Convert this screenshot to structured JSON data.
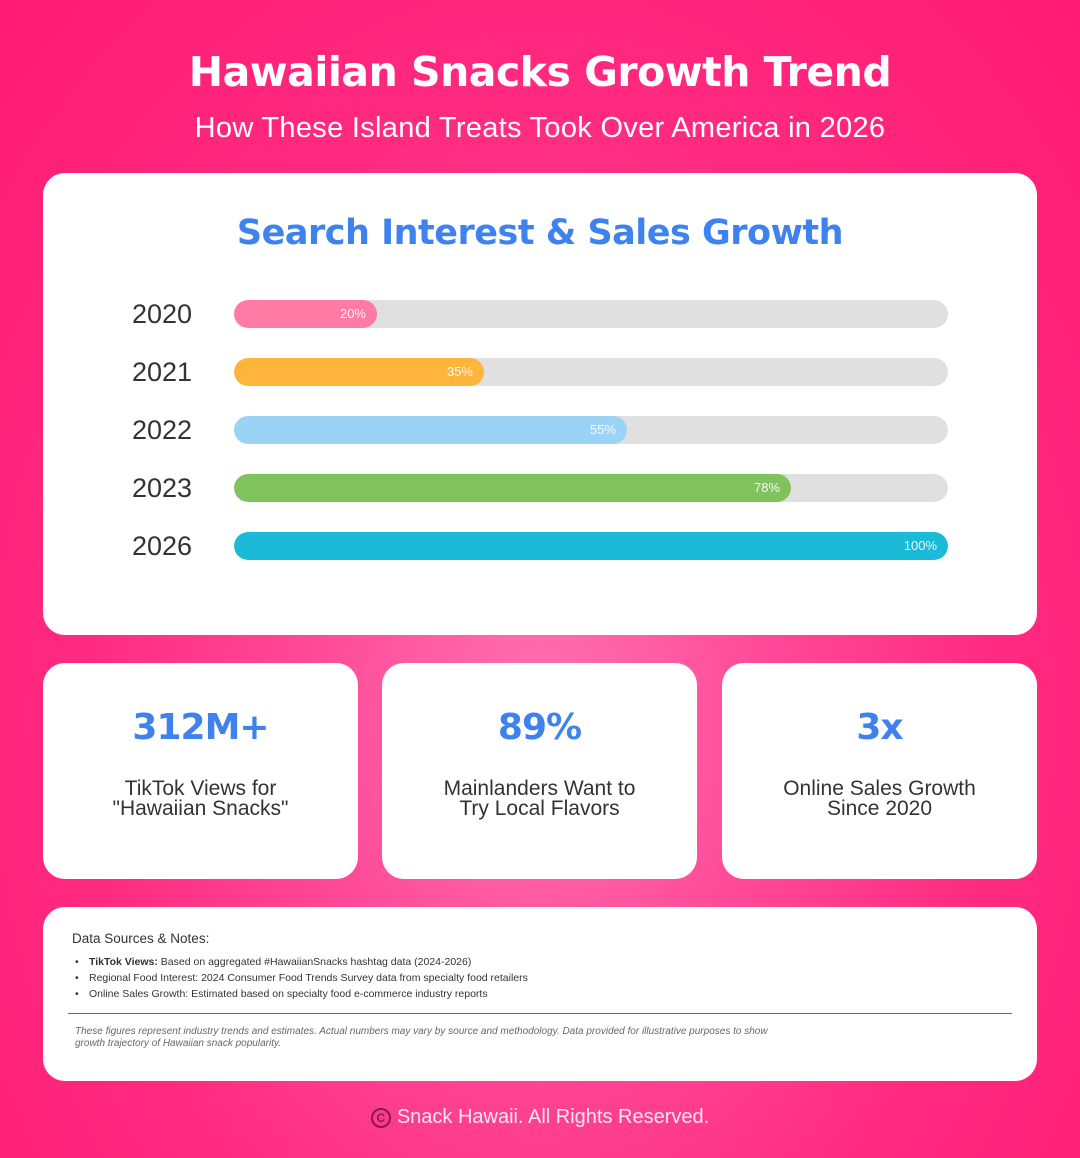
{
  "header": {
    "title": "Hawaiian Snacks Growth Trend",
    "subtitle": "How These Island Treats Took Over America in 2026"
  },
  "chart": {
    "title": "Search Interest & Sales Growth",
    "rows": [
      {
        "year": "2020",
        "value": 20,
        "label": "20%",
        "color": "#ff7aa5"
      },
      {
        "year": "2021",
        "value": 35,
        "label": "35%",
        "color": "#ffb43c"
      },
      {
        "year": "2022",
        "value": 55,
        "label": "55%",
        "color": "#9ad3f5"
      },
      {
        "year": "2023",
        "value": 78,
        "label": "78%",
        "color": "#80c25e"
      },
      {
        "year": "2026",
        "value": 100,
        "label": "100%",
        "color": "#1bbad6"
      }
    ],
    "track_color": "#e0e0e0"
  },
  "chart_data": {
    "type": "bar",
    "orientation": "horizontal",
    "title": "Search Interest & Sales Growth",
    "categories": [
      "2020",
      "2021",
      "2022",
      "2023",
      "2026"
    ],
    "values": [
      20,
      35,
      55,
      78,
      100
    ],
    "data_labels": [
      "20%",
      "35%",
      "55%",
      "78%",
      "100%"
    ],
    "colors": [
      "#ff7aa5",
      "#ffb43c",
      "#9ad3f5",
      "#80c25e",
      "#1bbad6"
    ],
    "xlabel": "",
    "ylabel": "",
    "xlim": [
      0,
      100
    ],
    "grid": false,
    "legend": "none"
  },
  "stats": [
    {
      "value": "312M+",
      "label_line1": "TikTok Views for",
      "label_line2": "\"Hawaiian Snacks\""
    },
    {
      "value": "89%",
      "label_line1": "Mainlanders Want to",
      "label_line2": "Try Local Flavors"
    },
    {
      "value": "3x",
      "label_line1": "Online Sales Growth",
      "label_line2": "Since 2020"
    }
  ],
  "notes": {
    "heading": "Data Sources & Notes:",
    "items": [
      {
        "bold": "TikTok Views:",
        "text": " Based on aggregated #HawaiianSnacks hashtag data (2024-2026)"
      },
      {
        "bold": "",
        "text": "Regional Food Interest: 2024 Consumer Food Trends Survey data from specialty food retailers"
      },
      {
        "bold": "",
        "text": "Online Sales Growth: Estimated based on specialty food e-commerce industry reports"
      }
    ],
    "disclaimer_line1": "These figures represent industry trends and estimates. Actual numbers may vary by source and methodology. Data provided for illustrative purposes to show",
    "disclaimer_line2": "growth trajectory of Hawaiian snack popularity."
  },
  "footer": {
    "copyright_symbol": "C",
    "text": "Snack Hawaii. All Rights Reserved."
  },
  "colors": {
    "background": "#ff2a80",
    "accent_blue": "#3e82ee",
    "card": "#ffffff"
  }
}
